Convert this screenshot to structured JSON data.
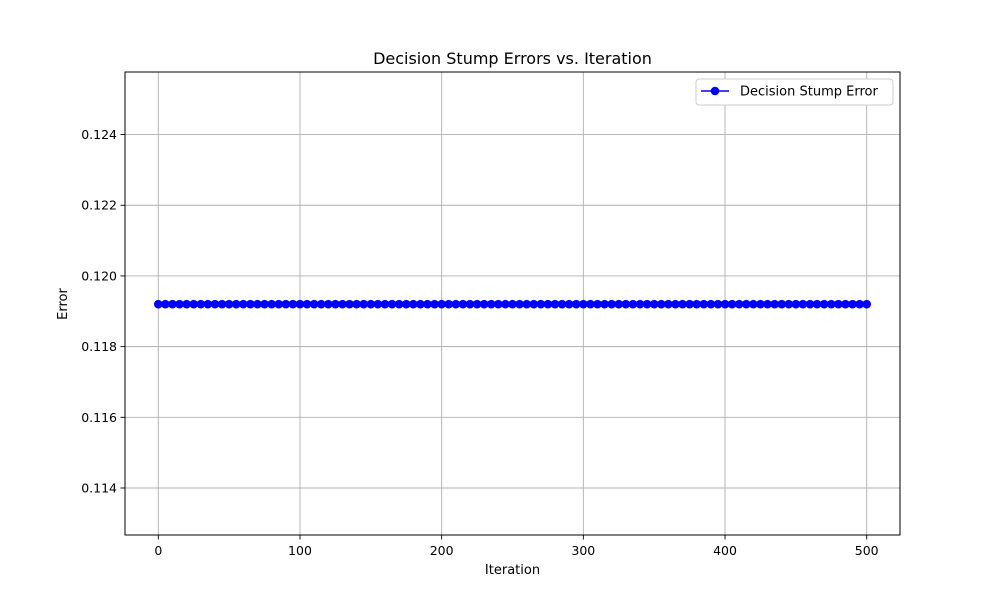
{
  "chart_data": {
    "type": "line",
    "title": "Decision Stump Errors vs. Iteration",
    "xlabel": "Iteration",
    "ylabel": "Error",
    "xlim": [
      -23.5,
      523.5
    ],
    "ylim": [
      0.11267,
      0.12577
    ],
    "xticks": [
      0,
      100,
      200,
      300,
      400,
      500
    ],
    "xtick_labels": [
      "0",
      "100",
      "200",
      "300",
      "400",
      "500"
    ],
    "yticks": [
      0.114,
      0.116,
      0.118,
      0.12,
      0.122,
      0.124
    ],
    "ytick_labels": [
      "0.114",
      "0.116",
      "0.118",
      "0.120",
      "0.122",
      "0.124"
    ],
    "grid": true,
    "legend_position": "top-right",
    "series": [
      {
        "name": "Decision Stump Error",
        "color": "#0000ff",
        "marker": "circle",
        "x_start": 0,
        "x_end": 500,
        "x_step": 5,
        "constant_y": 0.1192
      }
    ]
  }
}
